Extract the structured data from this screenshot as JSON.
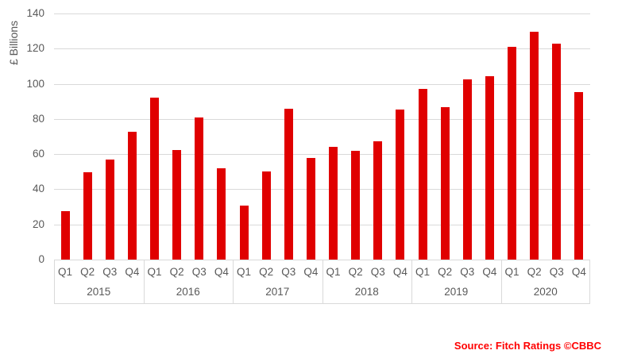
{
  "chart_data": {
    "type": "bar",
    "title": "",
    "xlabel": "",
    "ylabel": "£ Billions",
    "ylim": [
      0,
      140
    ],
    "yticks": [
      0,
      20,
      40,
      60,
      80,
      100,
      120,
      140
    ],
    "grid": true,
    "legend": false,
    "bar_color": "#e00000",
    "gridline_color": "#d9d9d9",
    "text_color": "#595959",
    "quarters": [
      "Q1",
      "Q2",
      "Q3",
      "Q4"
    ],
    "series": [
      {
        "year": "2015",
        "values": [
          27.5,
          49.5,
          57,
          72.5
        ]
      },
      {
        "year": "2016",
        "values": [
          92,
          62.5,
          81,
          52
        ]
      },
      {
        "year": "2017",
        "values": [
          30.5,
          50,
          86,
          58
        ]
      },
      {
        "year": "2018",
        "values": [
          64,
          62,
          67.5,
          85.5
        ]
      },
      {
        "year": "2019",
        "values": [
          97,
          86.5,
          102.5,
          104.5
        ]
      },
      {
        "year": "2020",
        "values": [
          121,
          129.5,
          123,
          95.5
        ]
      }
    ]
  },
  "source": {
    "label": "Source: Fitch Ratings ©CBBC",
    "color": "#ff0000"
  }
}
